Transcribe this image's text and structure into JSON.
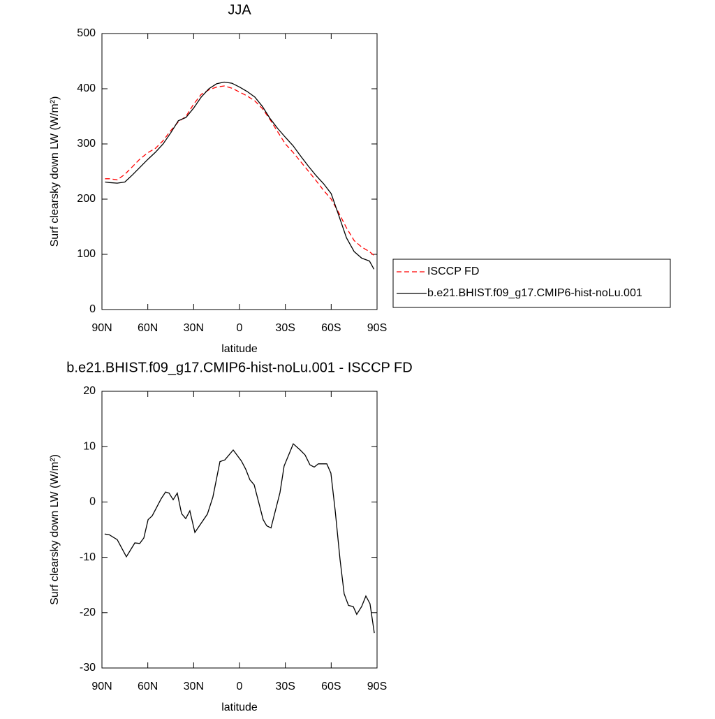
{
  "chart_data": [
    {
      "type": "line",
      "title": "JJA",
      "xlabel": "latitude",
      "ylabel": "Surf clearsky down LW (W/m²)",
      "x": [
        88,
        85,
        80,
        75,
        70,
        65,
        60,
        55,
        50,
        45,
        40,
        35,
        30,
        25,
        20,
        15,
        10,
        5,
        0,
        -5,
        -10,
        -15,
        -20,
        -25,
        -30,
        -35,
        -40,
        -45,
        -50,
        -55,
        -60,
        -65,
        -70,
        -75,
        -80,
        -85,
        -88
      ],
      "series": [
        {
          "name": "ISCCP FD",
          "color": "#ff0000",
          "dash": true,
          "values": [
            237,
            237,
            235,
            245,
            259,
            273,
            284,
            292,
            306,
            324,
            340,
            350,
            372,
            390,
            398,
            403,
            405,
            401,
            394,
            387,
            378,
            364,
            344,
            322,
            300,
            285,
            268,
            251,
            234,
            216,
            200,
            175,
            148,
            125,
            113,
            105,
            98
          ]
        },
        {
          "name": "b.e21.BHIST.f09_g17.CMIP6-hist-noLu.001",
          "color": "#000000",
          "dash": false,
          "values": [
            231,
            230,
            229,
            231,
            244,
            258,
            272,
            285,
            300,
            320,
            342,
            348,
            365,
            385,
            400,
            409,
            412,
            410,
            403,
            395,
            385,
            368,
            346,
            328,
            312,
            297,
            278,
            260,
            243,
            228,
            210,
            170,
            130,
            105,
            93,
            88,
            73
          ]
        }
      ],
      "xlim": [
        90,
        -90
      ],
      "xticks": [
        {
          "value": 90,
          "label": "90N"
        },
        {
          "value": 60,
          "label": "60N"
        },
        {
          "value": 30,
          "label": "30N"
        },
        0,
        {
          "value": -30,
          "label": "30S"
        },
        {
          "value": -60,
          "label": "60S"
        },
        {
          "value": -90,
          "label": "90S"
        }
      ],
      "ylim": [
        0,
        500
      ],
      "yticks": [
        0,
        100,
        200,
        300,
        400,
        500
      ],
      "legend": "right"
    },
    {
      "type": "line",
      "title": "b.e21.BHIST.f09_g17.CMIP6-hist-noLu.001 - ISCCP FD",
      "xlabel": "latitude",
      "ylabel": "Surf clearsky down LW (W/m²)",
      "x": [
        88.2,
        85.4,
        80.0,
        74.0,
        68.5,
        65.3,
        62.6,
        59.8,
        57.1,
        51.2,
        48.4,
        46.1,
        43.4,
        40.7,
        37.9,
        35.2,
        32.5,
        29.2,
        21.0,
        17.4,
        12.8,
        9.6,
        4.1,
        -1.3,
        -4.1,
        -6.8,
        -9.6,
        -15.5,
        -17.8,
        -20.6,
        -26.5,
        -29.2,
        -35.2,
        -39.7,
        -42.9,
        -46.1,
        -48.9,
        -51.6,
        -57.1,
        -59.8,
        -62.6,
        -65.8,
        -68.5,
        -71.3,
        -74.4,
        -76.7,
        -79.9,
        -82.7,
        -85.4,
        -88.2
      ],
      "series": [
        {
          "color": "#000000",
          "dash": false,
          "values": [
            -5.8,
            -5.9,
            -6.8,
            -9.9,
            -7.4,
            -7.5,
            -6.5,
            -3.2,
            -2.5,
            0.6,
            1.8,
            1.6,
            0.4,
            1.6,
            -2.1,
            -3.0,
            -1.6,
            -5.5,
            -2.2,
            0.9,
            7.3,
            7.6,
            9.4,
            7.4,
            5.9,
            4.0,
            3.1,
            -3.2,
            -4.3,
            -4.7,
            1.7,
            6.5,
            10.5,
            9.4,
            8.5,
            6.7,
            6.3,
            6.9,
            6.9,
            5.2,
            -1.5,
            -10.4,
            -16.6,
            -18.7,
            -18.9,
            -20.3,
            -18.9,
            -17.0,
            -18.4,
            -23.7
          ]
        }
      ],
      "xlim": [
        90,
        -90
      ],
      "xticks": [
        {
          "value": 90,
          "label": "90N"
        },
        {
          "value": 60,
          "label": "60N"
        },
        {
          "value": 30,
          "label": "30N"
        },
        0,
        {
          "value": -30,
          "label": "30S"
        },
        {
          "value": -60,
          "label": "60S"
        },
        {
          "value": -90,
          "label": "90S"
        }
      ],
      "ylim": [
        -30,
        20
      ],
      "yticks": [
        -30,
        -20,
        -10,
        0,
        10,
        20
      ]
    }
  ]
}
